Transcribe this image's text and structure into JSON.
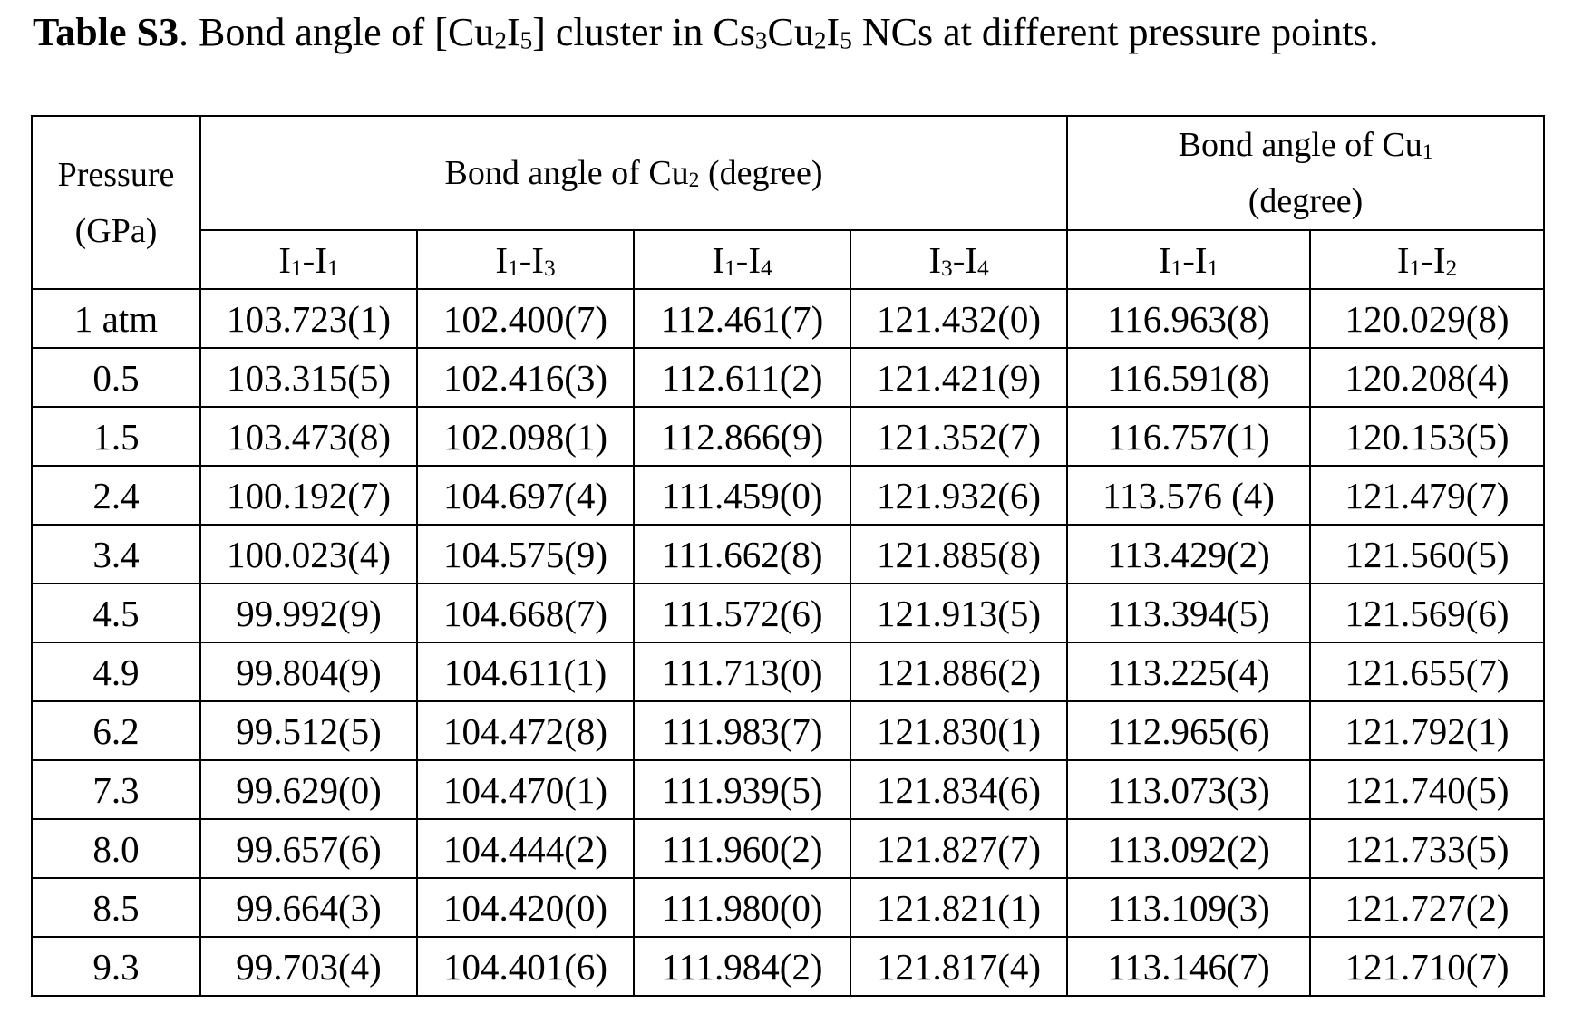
{
  "caption": {
    "label": "Table S3",
    "text_prefix": ". Bond angle of [Cu",
    "sub_a": "2",
    "text_b": "I",
    "sub_b": "5",
    "text_c": "] cluster in Cs",
    "sub_c": "3",
    "text_d": "Cu",
    "sub_d": "2",
    "text_e": "I",
    "sub_e": "5",
    "text_f": " NCs at different pressure points."
  },
  "header": {
    "pressure_line1": "Pressure",
    "pressure_line2": "(GPa)",
    "cu2_group_prefix": "Bond angle of Cu",
    "cu2_group_sub": "2",
    "cu2_group_suffix": " (degree)",
    "cu1_group_prefix": "Bond angle of Cu",
    "cu1_group_sub": "1",
    "cu1_group_line2": "(degree)",
    "subcolumns": [
      {
        "a": "I",
        "a_sub": "1",
        "sep": "-I",
        "b_sub": "1"
      },
      {
        "a": "I",
        "a_sub": "1",
        "sep": "-I",
        "b_sub": "3"
      },
      {
        "a": "I",
        "a_sub": "1",
        "sep": "-I",
        "b_sub": "4"
      },
      {
        "a": "I",
        "a_sub": "3",
        "sep": "-I",
        "b_sub": "4"
      },
      {
        "a": "I",
        "a_sub": "1",
        "sep": "-I",
        "b_sub": "1"
      },
      {
        "a": "I",
        "a_sub": "1",
        "sep": "-I",
        "b_sub": "2"
      }
    ]
  },
  "rows": [
    {
      "pressure": "1 atm",
      "values": [
        "103.723(1)",
        "102.400(7)",
        "112.461(7)",
        "121.432(0)",
        "116.963(8)",
        "120.029(8)"
      ]
    },
    {
      "pressure": "0.5",
      "values": [
        "103.315(5)",
        "102.416(3)",
        "112.611(2)",
        "121.421(9)",
        "116.591(8)",
        "120.208(4)"
      ]
    },
    {
      "pressure": "1.5",
      "values": [
        "103.473(8)",
        "102.098(1)",
        "112.866(9)",
        "121.352(7)",
        "116.757(1)",
        "120.153(5)"
      ]
    },
    {
      "pressure": "2.4",
      "values": [
        "100.192(7)",
        "104.697(4)",
        "111.459(0)",
        "121.932(6)",
        "113.576 (4)",
        "121.479(7)"
      ]
    },
    {
      "pressure": "3.4",
      "values": [
        "100.023(4)",
        "104.575(9)",
        "111.662(8)",
        "121.885(8)",
        "113.429(2)",
        "121.560(5)"
      ]
    },
    {
      "pressure": "4.5",
      "values": [
        "99.992(9)",
        "104.668(7)",
        "111.572(6)",
        "121.913(5)",
        "113.394(5)",
        "121.569(6)"
      ]
    },
    {
      "pressure": "4.9",
      "values": [
        "99.804(9)",
        "104.611(1)",
        "111.713(0)",
        "121.886(2)",
        "113.225(4)",
        "121.655(7)"
      ]
    },
    {
      "pressure": "6.2",
      "values": [
        "99.512(5)",
        "104.472(8)",
        "111.983(7)",
        "121.830(1)",
        "112.965(6)",
        "121.792(1)"
      ]
    },
    {
      "pressure": "7.3",
      "values": [
        "99.629(0)",
        "104.470(1)",
        "111.939(5)",
        "121.834(6)",
        "113.073(3)",
        "121.740(5)"
      ]
    },
    {
      "pressure": "8.0",
      "values": [
        "99.657(6)",
        "104.444(2)",
        "111.960(2)",
        "121.827(7)",
        "113.092(2)",
        "121.733(5)"
      ]
    },
    {
      "pressure": "8.5",
      "values": [
        "99.664(3)",
        "104.420(0)",
        "111.980(0)",
        "121.821(1)",
        "113.109(3)",
        "121.727(2)"
      ]
    },
    {
      "pressure": "9.3",
      "values": [
        "99.703(4)",
        "104.401(6)",
        "111.984(2)",
        "121.817(4)",
        "113.146(7)",
        "121.710(7)"
      ]
    }
  ]
}
